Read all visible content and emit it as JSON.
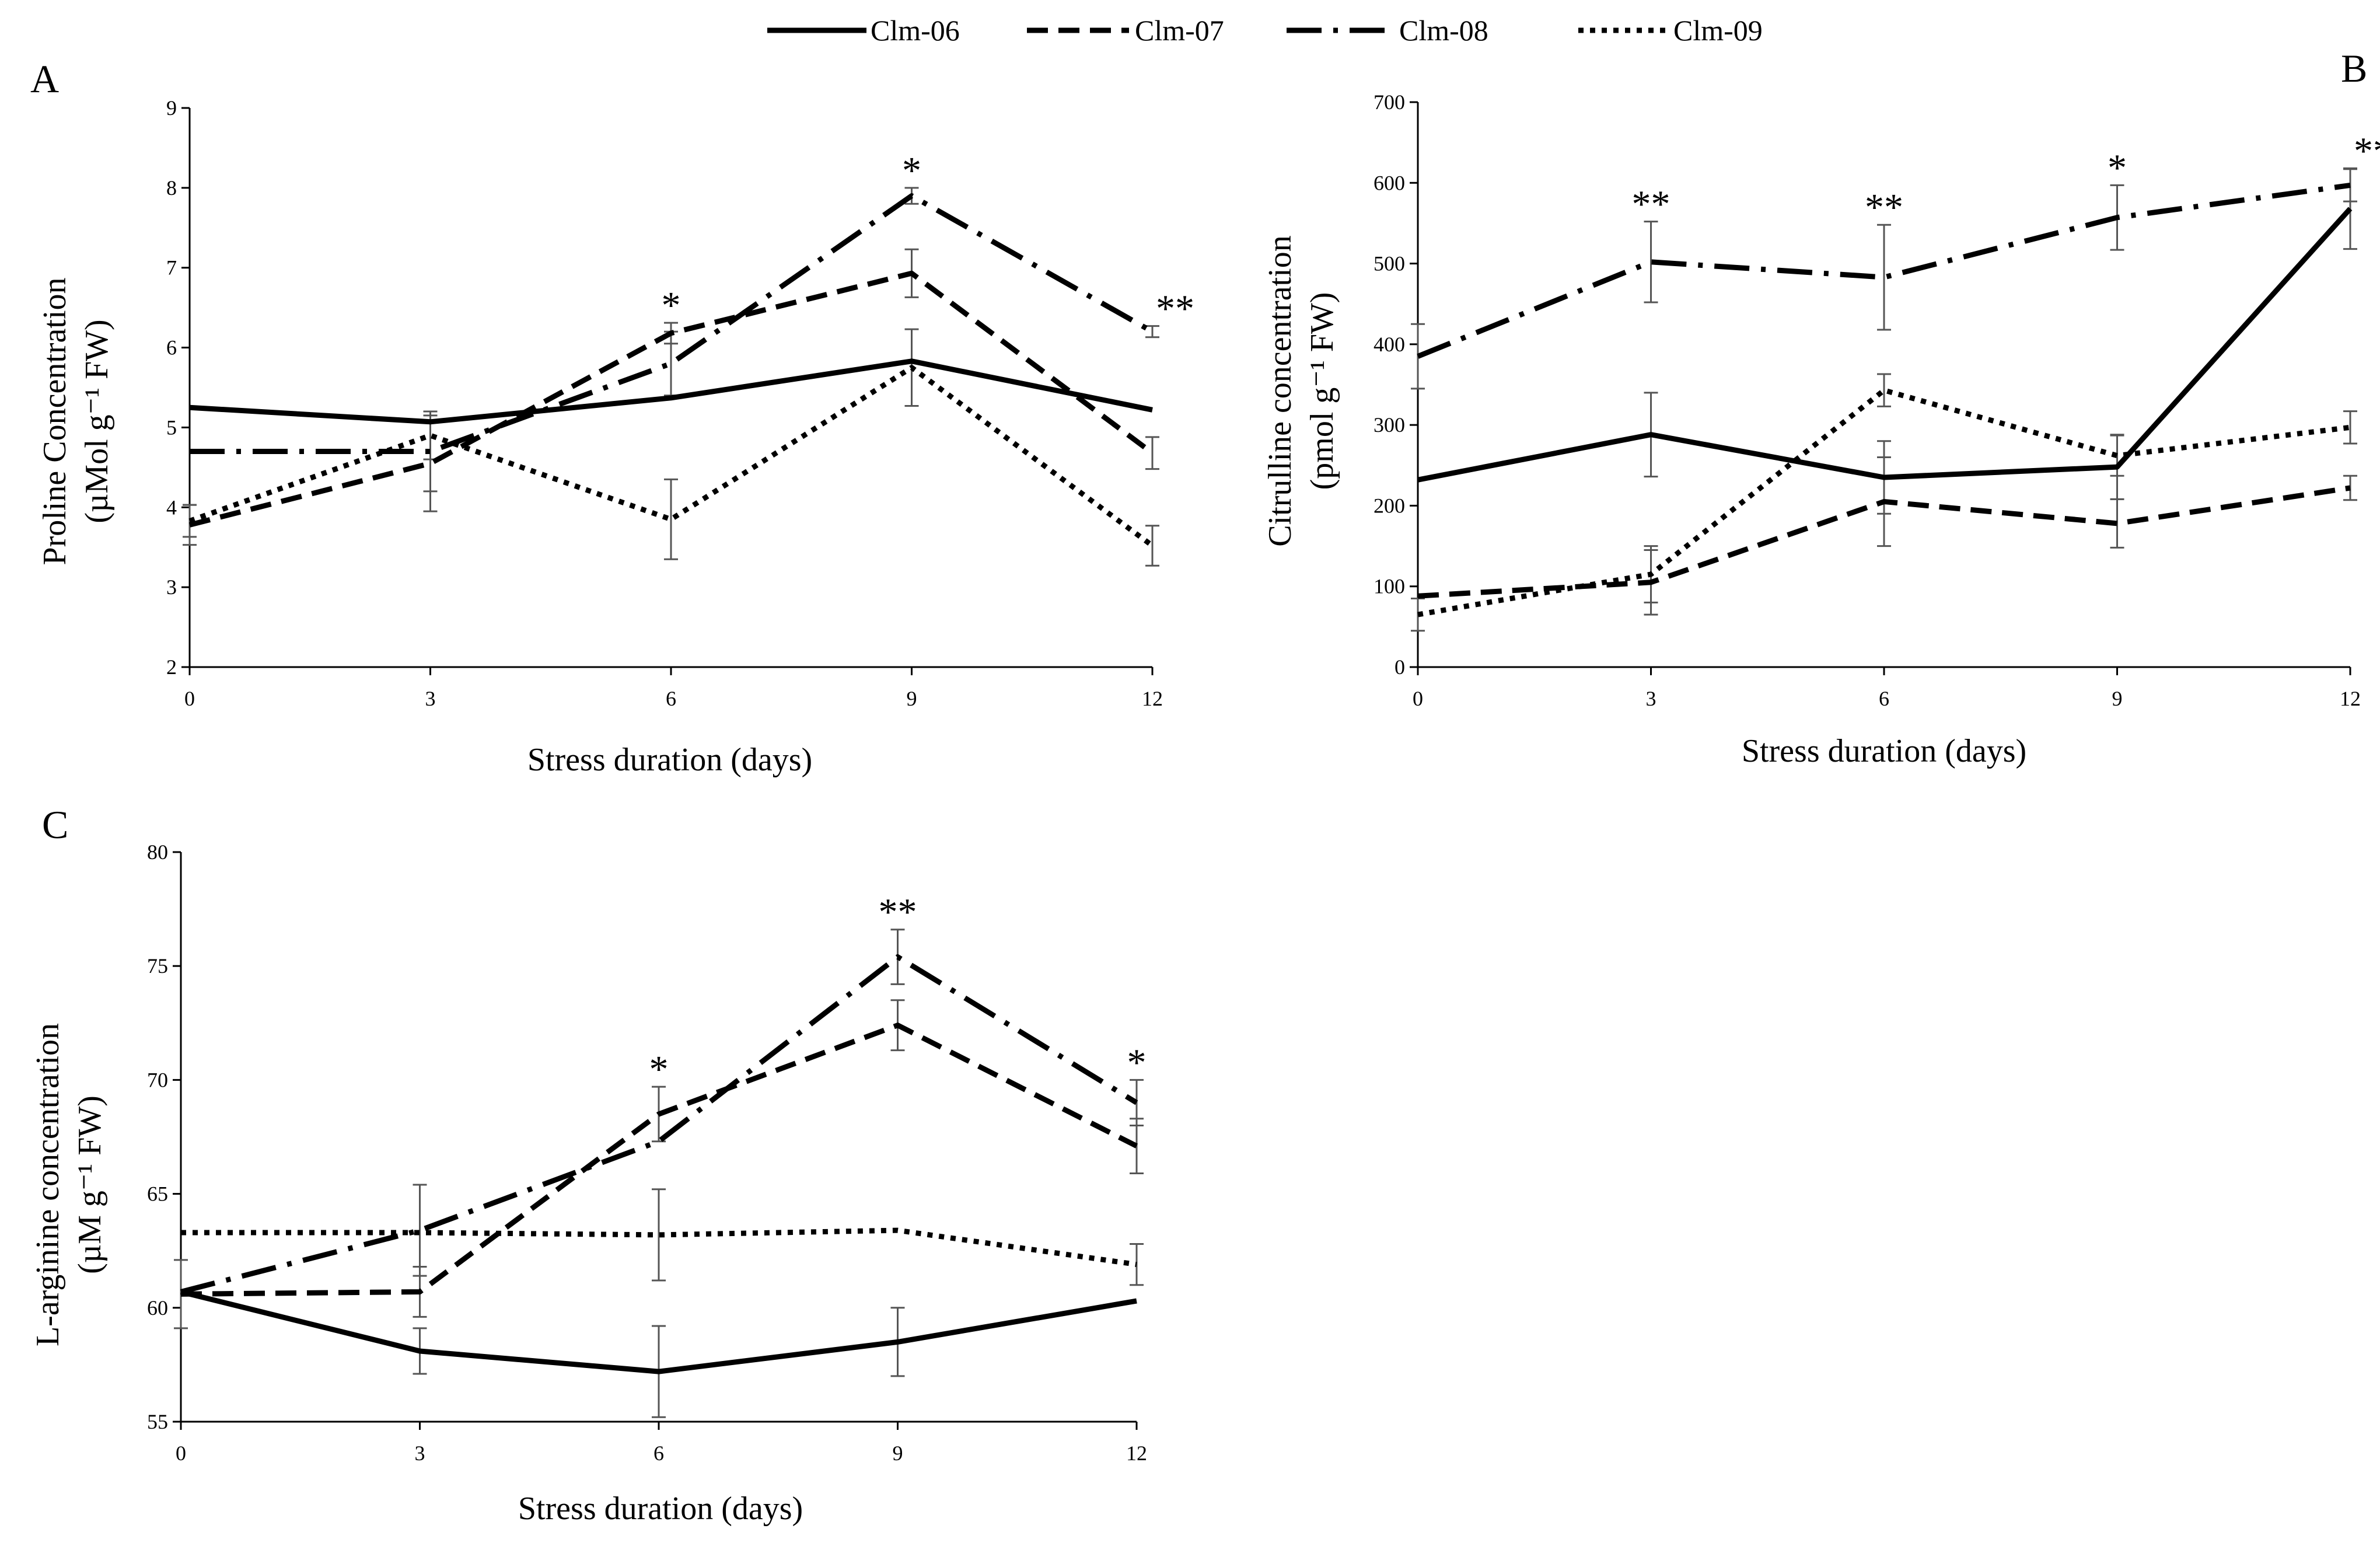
{
  "legend": {
    "entries": [
      {
        "name": "Clm-06",
        "style": "solid"
      },
      {
        "name": "Clm-07",
        "style": "dashed"
      },
      {
        "name": "Clm-08",
        "style": "dash-dot"
      },
      {
        "name": "Clm-09",
        "style": "dotted"
      }
    ]
  },
  "chart_data": [
    {
      "panel": "A",
      "type": "line",
      "title": "",
      "xlabel": "Stress duration (days)",
      "ylabel_line1": "Proline Concentration",
      "ylabel_line2": "(µMol g⁻¹ FW)",
      "x": [
        0,
        3,
        6,
        9,
        12
      ],
      "xlim": [
        0,
        12
      ],
      "ylim": [
        2,
        9
      ],
      "yticks": [
        2,
        3,
        4,
        5,
        6,
        7,
        8,
        9
      ],
      "grid": false,
      "series": [
        {
          "name": "Clm-06",
          "values": [
            5.25,
            5.07,
            5.37,
            5.83,
            5.22
          ],
          "errors": [
            null,
            null,
            null,
            null,
            null
          ]
        },
        {
          "name": "Clm-07",
          "values": [
            3.78,
            4.55,
            6.18,
            6.93,
            4.68
          ],
          "errors": [
            0.25,
            0.6,
            0.13,
            0.3,
            0.2
          ]
        },
        {
          "name": "Clm-08",
          "values": [
            4.7,
            4.7,
            5.8,
            7.9,
            6.2
          ],
          "errors": [
            null,
            0.5,
            0.4,
            0.1,
            0.07
          ]
        },
        {
          "name": "Clm-09",
          "values": [
            3.83,
            4.9,
            3.85,
            5.75,
            3.52
          ],
          "errors": [
            0.2,
            0.3,
            0.5,
            0.48,
            0.25
          ]
        }
      ],
      "annotations": [
        {
          "x": 6,
          "text": "*"
        },
        {
          "x": 9,
          "text": "*"
        },
        {
          "x": 12,
          "text": "**"
        }
      ]
    },
    {
      "panel": "B",
      "type": "line",
      "title": "",
      "xlabel": "Stress duration (days)",
      "ylabel_line1": "Citrulline concentration",
      "ylabel_line2": "(pmol g⁻¹ FW)",
      "x": [
        0,
        3,
        6,
        9,
        12
      ],
      "xlim": [
        0,
        12
      ],
      "ylim": [
        0,
        700
      ],
      "yticks": [
        0,
        100,
        200,
        300,
        400,
        500,
        600,
        700
      ],
      "grid": false,
      "series": [
        {
          "name": "Clm-06",
          "values": [
            232,
            288,
            235,
            248,
            568
          ],
          "errors": [
            null,
            52,
            45,
            40,
            50
          ]
        },
        {
          "name": "Clm-07",
          "values": [
            88,
            105,
            205,
            178,
            222
          ],
          "errors": [
            null,
            40,
            55,
            30,
            15
          ]
        },
        {
          "name": "Clm-08",
          "values": [
            385,
            502,
            483,
            557,
            597
          ],
          "errors": [
            40,
            50,
            65,
            40,
            20
          ]
        },
        {
          "name": "Clm-09",
          "values": [
            65,
            115,
            343,
            262,
            297
          ],
          "errors": [
            20,
            35,
            20,
            25,
            20
          ]
        }
      ],
      "annotations": [
        {
          "x": 3,
          "text": "**"
        },
        {
          "x": 6,
          "text": "**"
        },
        {
          "x": 9,
          "text": "*"
        },
        {
          "x": 12,
          "text": "**"
        }
      ]
    },
    {
      "panel": "C",
      "type": "line",
      "title": "",
      "xlabel": "Stress duration (days)",
      "ylabel_line1": "L-arginine concentration",
      "ylabel_line2": "(µM g⁻¹ FW)",
      "x": [
        0,
        3,
        6,
        9,
        12
      ],
      "xlim": [
        0,
        12
      ],
      "ylim": [
        55,
        80
      ],
      "yticks": [
        55,
        60,
        65,
        70,
        75,
        80
      ],
      "grid": false,
      "series": [
        {
          "name": "Clm-06",
          "values": [
            60.7,
            58.1,
            57.2,
            58.5,
            60.3
          ],
          "errors": [
            null,
            1.0,
            2.0,
            1.5,
            null
          ]
        },
        {
          "name": "Clm-07",
          "values": [
            60.6,
            60.7,
            68.5,
            72.4,
            67.1
          ],
          "errors": [
            1.5,
            1.1,
            1.2,
            1.1,
            1.2
          ]
        },
        {
          "name": "Clm-08",
          "values": [
            60.7,
            63.4,
            67.3,
            75.4,
            69.0
          ],
          "errors": [
            null,
            2.0,
            null,
            1.2,
            1.0
          ]
        },
        {
          "name": "Clm-09",
          "values": [
            63.3,
            63.3,
            63.2,
            63.4,
            61.9
          ],
          "errors": [
            null,
            null,
            2.0,
            null,
            0.9
          ]
        }
      ],
      "annotations": [
        {
          "x": 6,
          "text": "*"
        },
        {
          "x": 9,
          "text": "**"
        },
        {
          "x": 12,
          "text": "*"
        }
      ]
    }
  ]
}
